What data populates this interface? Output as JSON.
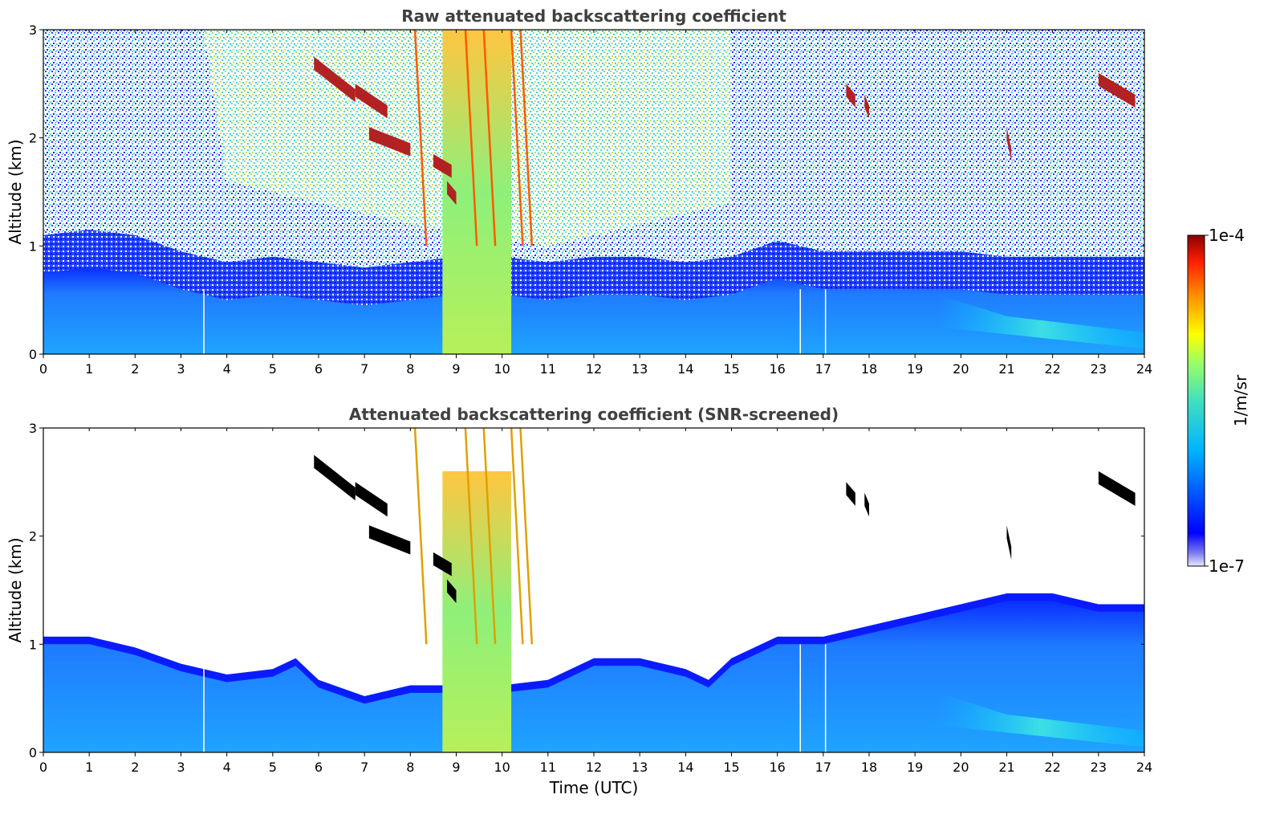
{
  "chart_data": [
    {
      "type": "heatmap",
      "title": "Raw attenuated backscattering coefficient",
      "xlabel": "",
      "ylabel": "Altitude (km)",
      "xlim": [
        0,
        24
      ],
      "ylim": [
        0,
        3
      ],
      "xticks": [
        "0",
        "1",
        "2",
        "3",
        "4",
        "5",
        "6",
        "7",
        "8",
        "9",
        "10",
        "11",
        "12",
        "13",
        "14",
        "15",
        "16",
        "17",
        "18",
        "19",
        "20",
        "21",
        "22",
        "23",
        "24"
      ],
      "yticks": [
        "0",
        "1",
        "2",
        "3"
      ],
      "boundary_layer_top_km": [
        [
          0,
          0.75
        ],
        [
          1,
          0.8
        ],
        [
          2,
          0.75
        ],
        [
          3,
          0.6
        ],
        [
          4,
          0.5
        ],
        [
          5,
          0.55
        ],
        [
          6,
          0.5
        ],
        [
          7,
          0.45
        ],
        [
          8,
          0.5
        ],
        [
          9,
          0.55
        ],
        [
          10,
          0.55
        ],
        [
          11,
          0.5
        ],
        [
          12,
          0.55
        ],
        [
          13,
          0.55
        ],
        [
          14,
          0.5
        ],
        [
          15,
          0.55
        ],
        [
          16,
          0.7
        ],
        [
          17,
          0.6
        ],
        [
          18,
          0.6
        ],
        [
          19,
          0.6
        ],
        [
          20,
          0.6
        ],
        [
          21,
          0.55
        ],
        [
          22,
          0.55
        ],
        [
          23,
          0.55
        ],
        [
          24,
          0.55
        ]
      ],
      "notes": "Time–altitude lidar curtain; noisy signal aloft, boundary layer below ~0.5–0.8 km, cloud features near 6–8 UTC (2–2.9 km), precipitation-like column 8.5–10.5 UTC, cloud near 23–24 UTC (~2.5 km)."
    },
    {
      "type": "heatmap",
      "title": "Attenuated backscattering coefficient (SNR-screened)",
      "xlabel": "Time (UTC)",
      "ylabel": "Altitude (km)",
      "xlim": [
        0,
        24
      ],
      "ylim": [
        0,
        3
      ],
      "xticks": [
        "0",
        "1",
        "2",
        "3",
        "4",
        "5",
        "6",
        "7",
        "8",
        "9",
        "10",
        "11",
        "12",
        "13",
        "14",
        "15",
        "16",
        "17",
        "18",
        "19",
        "20",
        "21",
        "22",
        "23",
        "24"
      ],
      "yticks": [
        "0",
        "1",
        "2",
        "3"
      ],
      "boundary_layer_top_km": [
        [
          0,
          1.0
        ],
        [
          1,
          1.0
        ],
        [
          2,
          0.9
        ],
        [
          3,
          0.75
        ],
        [
          4,
          0.65
        ],
        [
          5,
          0.7
        ],
        [
          5.5,
          0.8
        ],
        [
          6,
          0.6
        ],
        [
          7,
          0.45
        ],
        [
          8,
          0.55
        ],
        [
          9,
          0.55
        ],
        [
          10,
          0.55
        ],
        [
          11,
          0.6
        ],
        [
          12,
          0.8
        ],
        [
          13,
          0.8
        ],
        [
          14,
          0.7
        ],
        [
          14.5,
          0.6
        ],
        [
          15,
          0.8
        ],
        [
          16,
          1.0
        ],
        [
          17,
          1.0
        ],
        [
          18,
          1.1
        ],
        [
          19,
          1.2
        ],
        [
          20,
          1.3
        ],
        [
          21,
          1.4
        ],
        [
          22,
          1.4
        ],
        [
          23,
          1.3
        ],
        [
          24,
          1.3
        ]
      ],
      "notes": "Same scene after SNR screening: noise removed above the boundary layer; clouds shown in black where saturated."
    }
  ],
  "colorbar": {
    "label": "1/m/sr",
    "max_label": "1e-4",
    "min_label": "1e-7",
    "scale": "log",
    "range": [
      1e-07,
      0.0001
    ],
    "colormap": "jet"
  },
  "colors": {
    "title": "#404040",
    "background_noise": "#ffffff",
    "boundary_layer": "#1a6cff",
    "cloud_saturated": "#000000",
    "cloud_strong": "#b22222"
  }
}
